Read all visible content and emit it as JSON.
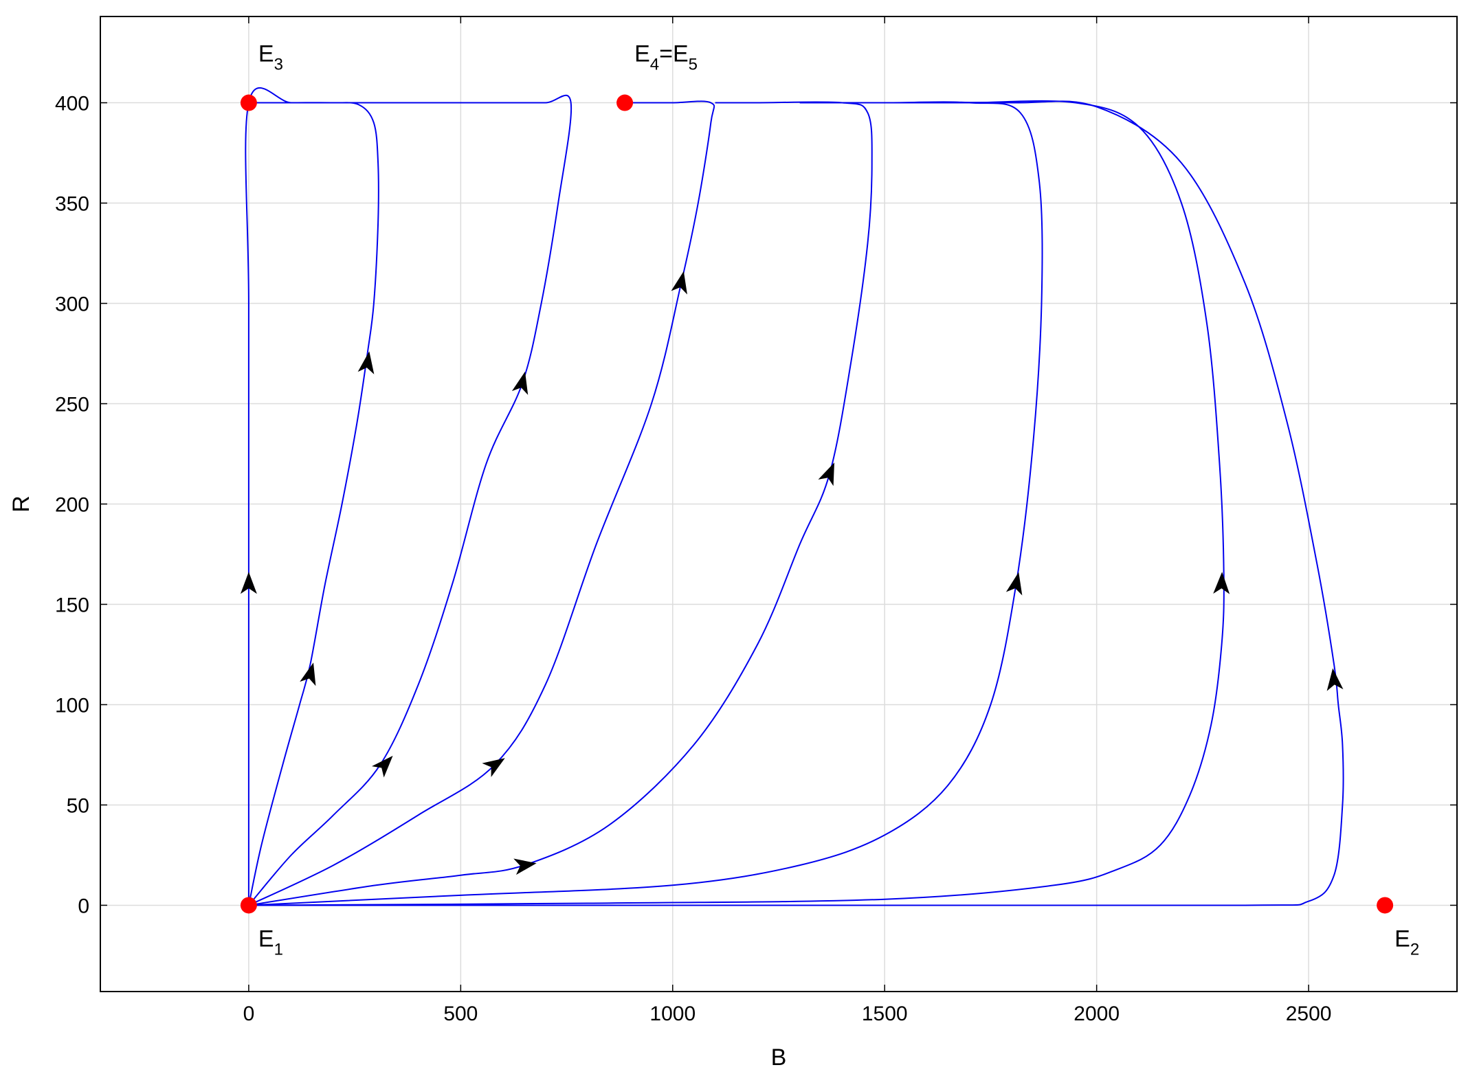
{
  "chart_data": {
    "type": "line",
    "title": "",
    "xlabel": "B",
    "ylabel": "R",
    "xlim": [
      -350,
      2850
    ],
    "ylim": [
      -43,
      443
    ],
    "grid": true,
    "xticks": [
      0,
      500,
      1000,
      1500,
      2000,
      2500
    ],
    "yticks": [
      0,
      50,
      100,
      150,
      200,
      250,
      300,
      350,
      400
    ],
    "xtick_labels": [
      "0",
      "500",
      "1000",
      "1500",
      "2000",
      "2500"
    ],
    "ytick_labels": [
      "0",
      "50",
      "100",
      "150",
      "200",
      "250",
      "300",
      "350",
      "400"
    ],
    "line_color": "#0000ee",
    "point_color": "#ff0000",
    "arrow_color": "#000000",
    "equilibria": [
      {
        "base": "E",
        "sub": "1",
        "tail": "",
        "x": 0,
        "y": 0,
        "label_pos": "below-right"
      },
      {
        "base": "E",
        "sub": "2",
        "tail": "",
        "x": 2680,
        "y": 0,
        "label_pos": "below-right"
      },
      {
        "base": "E",
        "sub": "3",
        "tail": "",
        "x": 0,
        "y": 400,
        "label_pos": "above-right"
      },
      {
        "base": "E",
        "sub": "4",
        "tail": "=E",
        "sub2": "5",
        "x": 887,
        "y": 400,
        "label_pos": "above-right"
      }
    ],
    "series": [
      {
        "points": [
          [
            0,
            0
          ],
          [
            0,
            150
          ],
          [
            0,
            300
          ],
          [
            0,
            400
          ],
          [
            100,
            400
          ],
          [
            200,
            400
          ],
          [
            300,
            400
          ]
        ],
        "arrows": [
          [
            0,
            160
          ]
        ]
      },
      {
        "points": [
          [
            0,
            0
          ],
          [
            30,
            30
          ],
          [
            80,
            70
          ],
          [
            120,
            100
          ],
          [
            145,
            120
          ],
          [
            180,
            160
          ],
          [
            220,
            200
          ],
          [
            255,
            240
          ],
          [
            280,
            275
          ],
          [
            295,
            300
          ],
          [
            305,
            340
          ],
          [
            305,
            370
          ],
          [
            295,
            390
          ],
          [
            260,
            399
          ],
          [
            200,
            400
          ],
          [
            100,
            400
          ],
          [
            0,
            400
          ]
        ],
        "arrows": [
          [
            145,
            115
          ],
          [
            280,
            270
          ]
        ]
      },
      {
        "points": [
          [
            0,
            0
          ],
          [
            100,
            25
          ],
          [
            200,
            45
          ],
          [
            310,
            70
          ],
          [
            400,
            110
          ],
          [
            480,
            160
          ],
          [
            560,
            220
          ],
          [
            645,
            260
          ],
          [
            690,
            300
          ],
          [
            730,
            350
          ],
          [
            760,
            400
          ],
          [
            700,
            400
          ],
          [
            600,
            400
          ],
          [
            500,
            400
          ],
          [
            400,
            400
          ],
          [
            300,
            400
          ]
        ],
        "arrows": [
          [
            320,
            70
          ],
          [
            645,
            260
          ]
        ]
      },
      {
        "points": [
          [
            0,
            0
          ],
          [
            200,
            20
          ],
          [
            400,
            45
          ],
          [
            580,
            70
          ],
          [
            700,
            110
          ],
          [
            820,
            180
          ],
          [
            950,
            250
          ],
          [
            1020,
            310
          ],
          [
            1060,
            350
          ],
          [
            1090,
            390
          ],
          [
            1090,
            400
          ],
          [
            1000,
            400
          ],
          [
            900,
            400
          ]
        ],
        "arrows": [
          [
            580,
            70
          ],
          [
            1020,
            310
          ]
        ]
      },
      {
        "points": [
          [
            0,
            0
          ],
          [
            300,
            10
          ],
          [
            500,
            15
          ],
          [
            650,
            20
          ],
          [
            850,
            40
          ],
          [
            1050,
            80
          ],
          [
            1200,
            130
          ],
          [
            1300,
            180
          ],
          [
            1370,
            215
          ],
          [
            1420,
            270
          ],
          [
            1460,
            330
          ],
          [
            1470,
            370
          ],
          [
            1460,
            395
          ],
          [
            1400,
            400
          ],
          [
            1200,
            400
          ],
          [
            1100,
            400
          ]
        ],
        "arrows": [
          [
            650,
            20
          ],
          [
            1370,
            215
          ]
        ]
      },
      {
        "points": [
          [
            0,
            0
          ],
          [
            500,
            5
          ],
          [
            1000,
            10
          ],
          [
            1300,
            20
          ],
          [
            1500,
            35
          ],
          [
            1650,
            60
          ],
          [
            1750,
            100
          ],
          [
            1810,
            160
          ],
          [
            1850,
            230
          ],
          [
            1870,
            300
          ],
          [
            1865,
            360
          ],
          [
            1820,
            395
          ],
          [
            1700,
            400
          ],
          [
            1500,
            400
          ],
          [
            1300,
            400
          ]
        ],
        "arrows": [
          [
            1810,
            160
          ]
        ]
      },
      {
        "points": [
          [
            0,
            0
          ],
          [
            800,
            1
          ],
          [
            1500,
            3
          ],
          [
            1900,
            10
          ],
          [
            2050,
            18
          ],
          [
            2150,
            30
          ],
          [
            2220,
            55
          ],
          [
            2270,
            90
          ],
          [
            2295,
            130
          ],
          [
            2300,
            165
          ],
          [
            2290,
            220
          ],
          [
            2260,
            290
          ],
          [
            2200,
            350
          ],
          [
            2100,
            388
          ],
          [
            1950,
            400
          ],
          [
            1700,
            400
          ],
          [
            1500,
            400
          ]
        ],
        "arrows": [
          [
            2295,
            160
          ]
        ]
      },
      {
        "points": [
          [
            0,
            0
          ],
          [
            1500,
            0
          ],
          [
            2350,
            0
          ],
          [
            2500,
            2
          ],
          [
            2560,
            15
          ],
          [
            2580,
            50
          ],
          [
            2580,
            80
          ],
          [
            2570,
            100
          ],
          [
            2560,
            120
          ],
          [
            2520,
            170
          ],
          [
            2450,
            240
          ],
          [
            2350,
            310
          ],
          [
            2200,
            370
          ],
          [
            2000,
            398
          ],
          [
            1800,
            400
          ],
          [
            1500,
            400
          ],
          [
            1300,
            400
          ]
        ],
        "arrows": [
          [
            2560,
            112
          ]
        ]
      }
    ]
  }
}
